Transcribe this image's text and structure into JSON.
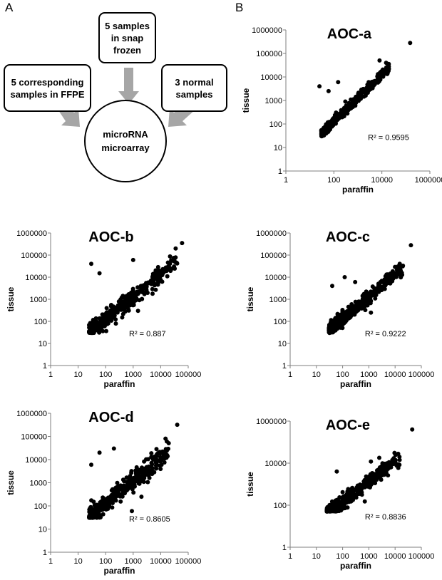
{
  "panel_labels": {
    "a": "A",
    "b": "B"
  },
  "diagram": {
    "top_box": "5 samples\nin snap\nfrozen",
    "left_box": "5 corresponding\nsamples in FFPE",
    "right_box": "3 normal\nsamples",
    "center": "microRNA\nmicroarray"
  },
  "colors": {
    "points": "#000000",
    "arrow": "#a6a6a6",
    "axis": "#7f7f7f"
  },
  "chart_data": [
    {
      "type": "scatter",
      "title": "AOC-a",
      "xlabel": "paraffin",
      "ylabel": "tissue",
      "r2_label": "R² = 0.9595",
      "xlim": [
        1,
        1000000
      ],
      "ylim": [
        1,
        1000000
      ],
      "xticks": [
        {
          "v": 1,
          "l": "1"
        },
        {
          "v": 100,
          "l": "100"
        },
        {
          "v": 10000,
          "l": "10000"
        },
        {
          "v": 1000000,
          "l": "1000000"
        }
      ],
      "yticks": [
        {
          "v": 1,
          "l": "1"
        },
        {
          "v": 10,
          "l": "10"
        },
        {
          "v": 100,
          "l": "100"
        },
        {
          "v": 1000,
          "l": "1000"
        },
        {
          "v": 10000,
          "l": "10000"
        },
        {
          "v": 100000,
          "l": "100000"
        },
        {
          "v": 1000000,
          "l": "1000000"
        }
      ],
      "spread": 0.18,
      "xmin": 30,
      "xmax": 20000,
      "ymin": 30,
      "outliers": [
        [
          150000,
          280000
        ],
        [
          15000,
          40000
        ],
        [
          8000,
          50000
        ],
        [
          25,
          4000
        ],
        [
          150,
          6000
        ],
        [
          60,
          2500
        ],
        [
          300,
          900
        ]
      ]
    },
    {
      "type": "scatter",
      "title": "AOC-b",
      "xlabel": "paraffin",
      "ylabel": "tissue",
      "r2_label": "R² = 0.887",
      "xlim": [
        1,
        100000
      ],
      "ylim": [
        1,
        1000000
      ],
      "xticks": [
        {
          "v": 1,
          "l": "1"
        },
        {
          "v": 10,
          "l": "10"
        },
        {
          "v": 100,
          "l": "100"
        },
        {
          "v": 1000,
          "l": "1000"
        },
        {
          "v": 10000,
          "l": "10000"
        },
        {
          "v": 100000,
          "l": "100000"
        }
      ],
      "yticks": [
        {
          "v": 1,
          "l": "1"
        },
        {
          "v": 10,
          "l": "10"
        },
        {
          "v": 100,
          "l": "100"
        },
        {
          "v": 1000,
          "l": "1000"
        },
        {
          "v": 10000,
          "l": "10000"
        },
        {
          "v": 100000,
          "l": "100000"
        },
        {
          "v": 1000000,
          "l": "1000000"
        }
      ],
      "spread": 0.33,
      "xmin": 25,
      "xmax": 40000,
      "ymin": 30,
      "outliers": [
        [
          60000,
          350000
        ],
        [
          35000,
          200000
        ],
        [
          30,
          40000
        ],
        [
          60,
          15000
        ],
        [
          1500,
          300
        ],
        [
          400,
          150
        ],
        [
          20000,
          30000
        ],
        [
          1000,
          60000
        ]
      ]
    },
    {
      "type": "scatter",
      "title": "AOC-c",
      "xlabel": "paraffin",
      "ylabel": "tissue",
      "r2_label": "R² = 0.9222",
      "xlim": [
        1,
        100000
      ],
      "ylim": [
        1,
        1000000
      ],
      "xticks": [
        {
          "v": 1,
          "l": "1"
        },
        {
          "v": 10,
          "l": "10"
        },
        {
          "v": 100,
          "l": "100"
        },
        {
          "v": 1000,
          "l": "1000"
        },
        {
          "v": 10000,
          "l": "10000"
        },
        {
          "v": 100000,
          "l": "100000"
        }
      ],
      "yticks": [
        {
          "v": 1,
          "l": "1"
        },
        {
          "v": 10,
          "l": "10"
        },
        {
          "v": 100,
          "l": "100"
        },
        {
          "v": 1000,
          "l": "1000"
        },
        {
          "v": 10000,
          "l": "10000"
        },
        {
          "v": 100000,
          "l": "100000"
        },
        {
          "v": 1000000,
          "l": "1000000"
        }
      ],
      "spread": 0.26,
      "xmin": 30,
      "xmax": 20000,
      "ymin": 30,
      "outliers": [
        [
          40000,
          280000
        ],
        [
          15000,
          40000
        ],
        [
          40,
          4000
        ],
        [
          120,
          10000
        ],
        [
          300,
          6000
        ],
        [
          1200,
          250
        ]
      ]
    },
    {
      "type": "scatter",
      "title": "AOC-d",
      "xlabel": "paraffin",
      "ylabel": "tissue",
      "r2_label": "R² = 0.8605",
      "xlim": [
        1,
        100000
      ],
      "ylim": [
        1,
        1000000
      ],
      "xticks": [
        {
          "v": 1,
          "l": "1"
        },
        {
          "v": 10,
          "l": "10"
        },
        {
          "v": 100,
          "l": "100"
        },
        {
          "v": 1000,
          "l": "1000"
        },
        {
          "v": 10000,
          "l": "10000"
        },
        {
          "v": 100000,
          "l": "100000"
        }
      ],
      "yticks": [
        {
          "v": 1,
          "l": "1"
        },
        {
          "v": 10,
          "l": "10"
        },
        {
          "v": 100,
          "l": "100"
        },
        {
          "v": 1000,
          "l": "1000"
        },
        {
          "v": 10000,
          "l": "10000"
        },
        {
          "v": 100000,
          "l": "100000"
        },
        {
          "v": 1000000,
          "l": "1000000"
        }
      ],
      "spread": 0.36,
      "xmin": 25,
      "xmax": 20000,
      "ymin": 30,
      "outliers": [
        [
          40000,
          320000
        ],
        [
          15000,
          80000
        ],
        [
          60,
          20000
        ],
        [
          900,
          60
        ],
        [
          2000,
          250
        ],
        [
          200,
          30000
        ],
        [
          30,
          6000
        ]
      ]
    },
    {
      "type": "scatter",
      "title": "AOC-e",
      "xlabel": "paraffin",
      "ylabel": "tissue",
      "r2_label": "R² = 0.8836",
      "xlim": [
        1,
        100000
      ],
      "ylim": [
        1,
        1000000
      ],
      "xticks": [
        {
          "v": 1,
          "l": "1"
        },
        {
          "v": 10,
          "l": "10"
        },
        {
          "v": 100,
          "l": "100"
        },
        {
          "v": 1000,
          "l": "1000"
        },
        {
          "v": 10000,
          "l": "10000"
        },
        {
          "v": 100000,
          "l": "100000"
        }
      ],
      "yticks": [
        {
          "v": 1,
          "l": "1"
        },
        {
          "v": 100,
          "l": "100"
        },
        {
          "v": 10000,
          "l": "10000"
        },
        {
          "v": 1000000,
          "l": "1000000"
        }
      ],
      "spread": 0.3,
      "xmin": 25,
      "xmax": 15000,
      "ymin": 50,
      "outliers": [
        [
          45000,
          400000
        ],
        [
          2500,
          18000
        ],
        [
          1200,
          12000
        ],
        [
          60,
          4000
        ],
        [
          700,
          150
        ]
      ]
    }
  ]
}
